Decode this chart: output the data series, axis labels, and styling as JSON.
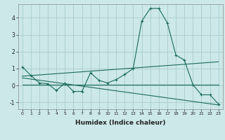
{
  "title": "",
  "xlabel": "Humidex (Indice chaleur)",
  "background_color": "#cce8e8",
  "grid_color": "#aacccc",
  "line_color": "#1a6b5a",
  "xlim": [
    -0.5,
    23.5
  ],
  "ylim": [
    -1.4,
    4.8
  ],
  "xticks": [
    0,
    1,
    2,
    3,
    4,
    5,
    6,
    7,
    8,
    9,
    10,
    11,
    12,
    13,
    14,
    15,
    16,
    17,
    18,
    19,
    20,
    21,
    22,
    23
  ],
  "yticks": [
    -1,
    0,
    1,
    2,
    3,
    4
  ],
  "line1_x": [
    0,
    1,
    2,
    3,
    4,
    5,
    6,
    7,
    8,
    9,
    10,
    11,
    12,
    13,
    14,
    15,
    16,
    17,
    18,
    19,
    20,
    21,
    22,
    23
  ],
  "line1_y": [
    1.1,
    0.6,
    0.15,
    0.1,
    -0.3,
    0.15,
    -0.35,
    -0.35,
    0.75,
    0.3,
    0.15,
    0.35,
    0.65,
    1.0,
    3.8,
    4.55,
    4.55,
    3.7,
    1.8,
    1.5,
    0.05,
    -0.55,
    -0.55,
    -1.1
  ],
  "line2_x": [
    0,
    23
  ],
  "line2_y": [
    0.05,
    0.05
  ],
  "line3_x": [
    0,
    23
  ],
  "line3_y": [
    0.55,
    1.4
  ],
  "line4_x": [
    0,
    23
  ],
  "line4_y": [
    0.45,
    -1.15
  ]
}
